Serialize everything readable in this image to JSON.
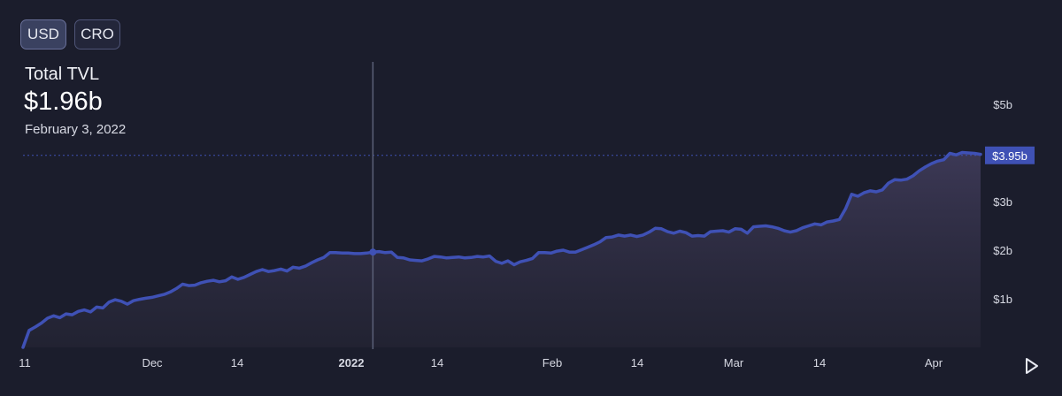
{
  "toggles": {
    "usd": "USD",
    "cro": "CRO",
    "active": "USD"
  },
  "header": {
    "title": "Total TVL",
    "value": "$1.96b",
    "date": "February 3, 2022"
  },
  "colors": {
    "line": "#3f51b5",
    "area_top": "#3e3a58",
    "area_bottom": "#262636",
    "badge": "#3f51b5",
    "axis_text": "#d6d8e2",
    "crosshair": "#5b6078"
  },
  "chart_data": {
    "type": "area",
    "title": "Total TVL",
    "xlabel": "",
    "ylabel": "",
    "x_tick_labels": [
      "11",
      "Dec",
      "14",
      "2022",
      "14",
      "Feb",
      "14",
      "Mar",
      "14",
      "Apr"
    ],
    "y_tick_labels": [
      "$1b",
      "$2b",
      "$3b",
      "$5b"
    ],
    "ylim": [
      0,
      5
    ],
    "unit": "USD billions",
    "current_value_label": "$3.95b",
    "current_value": 3.95,
    "highlighted": {
      "label": "February 3, 2022",
      "value": 1.96
    },
    "grid": false,
    "series": [
      {
        "values": [
          0.0,
          0.35,
          0.42,
          0.5,
          0.6,
          0.65,
          0.61,
          0.69,
          0.67,
          0.74,
          0.77,
          0.73,
          0.83,
          0.81,
          0.93,
          0.98,
          0.95,
          0.89,
          0.96,
          0.99,
          1.01,
          1.03,
          1.06,
          1.09,
          1.14,
          1.21,
          1.3,
          1.27,
          1.28,
          1.33,
          1.36,
          1.38,
          1.35,
          1.37,
          1.45,
          1.4,
          1.44,
          1.5,
          1.56,
          1.6,
          1.56,
          1.58,
          1.61,
          1.57,
          1.65,
          1.63,
          1.67,
          1.74,
          1.8,
          1.85,
          1.95,
          1.95,
          1.94,
          1.94,
          1.93,
          1.93,
          1.94,
          1.96,
          1.97,
          1.95,
          1.96,
          1.85,
          1.84,
          1.8,
          1.79,
          1.78,
          1.82,
          1.87,
          1.86,
          1.84,
          1.85,
          1.86,
          1.84,
          1.85,
          1.87,
          1.86,
          1.88,
          1.77,
          1.73,
          1.78,
          1.7,
          1.76,
          1.79,
          1.83,
          1.95,
          1.95,
          1.94,
          1.98,
          2.0,
          1.96,
          1.96,
          2.01,
          2.06,
          2.11,
          2.17,
          2.26,
          2.27,
          2.31,
          2.29,
          2.31,
          2.28,
          2.31,
          2.37,
          2.45,
          2.44,
          2.38,
          2.35,
          2.39,
          2.36,
          2.29,
          2.3,
          2.29,
          2.38,
          2.39,
          2.4,
          2.37,
          2.44,
          2.43,
          2.35,
          2.48,
          2.49,
          2.5,
          2.48,
          2.45,
          2.4,
          2.37,
          2.4,
          2.46,
          2.5,
          2.54,
          2.52,
          2.58,
          2.6,
          2.63,
          2.85,
          3.15,
          3.11,
          3.18,
          3.22,
          3.2,
          3.24,
          3.38,
          3.45,
          3.44,
          3.46,
          3.53,
          3.63,
          3.71,
          3.78,
          3.83,
          3.86,
          3.99,
          3.96,
          4.01,
          4.0,
          3.99,
          3.97
        ]
      }
    ]
  }
}
